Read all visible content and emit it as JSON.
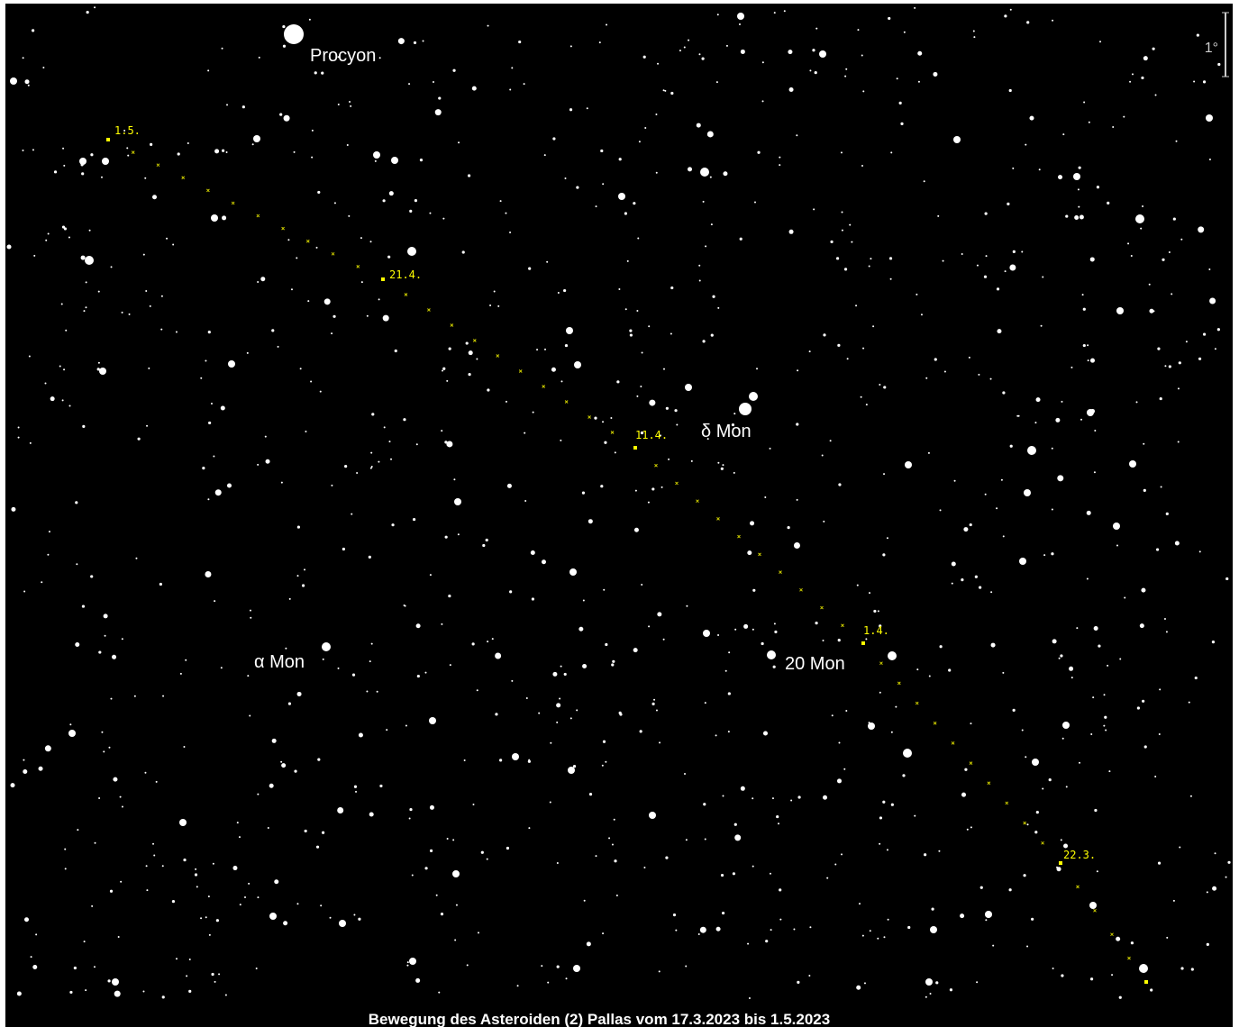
{
  "header": {
    "scale": "1°"
  },
  "stars": [
    "Procyon",
    "δ Mon",
    "α Mon",
    "20 Mon"
  ],
  "dates": [
    "1.5.",
    "21.4.",
    "11.4.",
    "1.4.",
    "22.3."
  ],
  "caption": "Bewegung des Asteroiden (2) Pallas vom 17.3.2023 bis 1.5.2023"
}
